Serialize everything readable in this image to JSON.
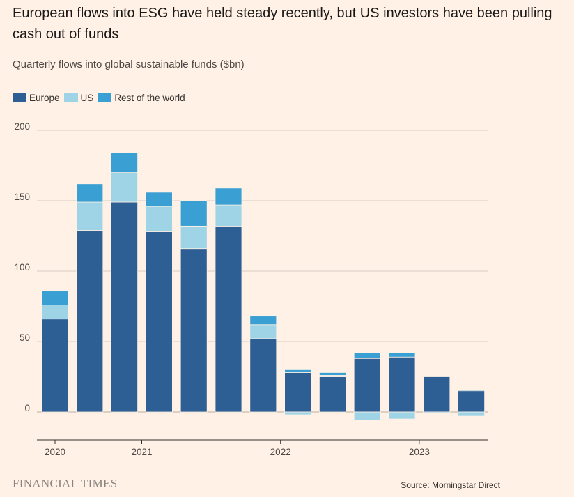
{
  "header": {
    "title": "European flows into ESG have held steady recently, but US investors have been pulling cash out of funds",
    "subtitle": "Quarterly flows into global sustainable funds ($bn)"
  },
  "legend": [
    {
      "label": "Europe",
      "color": "#2e5f94"
    },
    {
      "label": "US",
      "color": "#9fd4e6"
    },
    {
      "label": "Rest of the world",
      "color": "#3a9fd3"
    }
  ],
  "footer": {
    "brand": "FINANCIAL TIMES",
    "source": "Source: Morningstar Direct"
  },
  "chart_data": {
    "type": "bar",
    "stacked": true,
    "categories": [
      "2020 Q1",
      "2020 Q2",
      "2020 Q3",
      "2020 Q4",
      "2021 Q1",
      "2021 Q2",
      "2021 Q3",
      "2021 Q4",
      "2022 Q1",
      "2022 Q2",
      "2022 Q3",
      "2022 Q4",
      "2023 Q1",
      "2023 Q2"
    ],
    "series": [
      {
        "name": "Europe",
        "color": "#2e5f94",
        "values": [
          66,
          129,
          149,
          128,
          116,
          132,
          52,
          28,
          25,
          38,
          39,
          25,
          15,
          0
        ]
      },
      {
        "name": "US",
        "color": "#9fd4e6",
        "values": [
          10,
          20,
          21,
          18,
          16,
          15,
          10,
          -2,
          1,
          -6,
          -5,
          -1,
          -3,
          0
        ]
      },
      {
        "name": "Rest of the world",
        "color": "#3a9fd3",
        "values": [
          10,
          13,
          14,
          10,
          18,
          12,
          6,
          2,
          2,
          4,
          3,
          0,
          1,
          0
        ]
      }
    ],
    "ylim": [
      -20,
      200
    ],
    "yticks": [
      0,
      50,
      100,
      150,
      200
    ],
    "xtick_labels": [
      {
        "label": "2020",
        "at": 0
      },
      {
        "label": "2021",
        "at": 2.5
      },
      {
        "label": "2022",
        "at": 6.5
      },
      {
        "label": "2023",
        "at": 10.5
      }
    ],
    "grid": true,
    "legend_position": "top-left"
  }
}
